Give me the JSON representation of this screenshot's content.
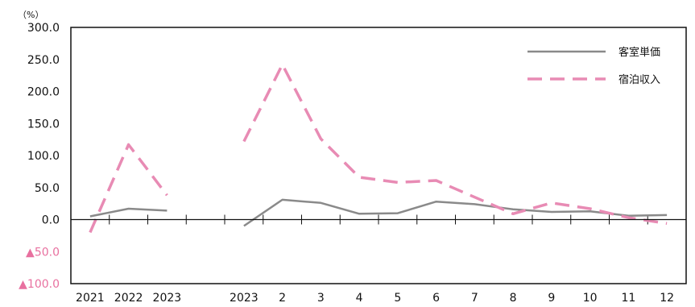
{
  "chart_data": {
    "type": "line",
    "unit_label": "（%）",
    "categories": [
      "2021",
      "2022",
      "2023",
      "",
      "2023",
      "2",
      "3",
      "4",
      "5",
      "6",
      "7",
      "8",
      "9",
      "10",
      "11",
      "12"
    ],
    "y_ticks": [
      {
        "value": 300,
        "label": "300.0"
      },
      {
        "value": 250,
        "label": "250.0"
      },
      {
        "value": 200,
        "label": "200.0"
      },
      {
        "value": 150,
        "label": "150.0"
      },
      {
        "value": 100,
        "label": "100.0"
      },
      {
        "value": 50,
        "label": "50.0"
      },
      {
        "value": 0,
        "label": "0.0"
      },
      {
        "value": -50,
        "label": "▲50.0"
      },
      {
        "value": -100,
        "label": "▲100.0"
      }
    ],
    "ylim": [
      -100,
      300
    ],
    "grid": false,
    "legend_position": "top-right",
    "colors": {
      "room_rate": "#8a8a8a",
      "lodging_revenue": "#e88bb4",
      "negative_tick": "#e8709f"
    },
    "series": [
      {
        "name": "客室単価",
        "style": "solid",
        "segments": [
          {
            "indices": [
              0,
              1,
              2
            ],
            "values": [
              5,
              17,
              14
            ]
          },
          {
            "indices": [
              4,
              5,
              6,
              7,
              8,
              9,
              10,
              11,
              12,
              13,
              14,
              15
            ],
            "values": [
              -10,
              31,
              26,
              9,
              10,
              28,
              24,
              16,
              12,
              13,
              6,
              7
            ]
          }
        ]
      },
      {
        "name": "宿泊収入",
        "style": "dashed",
        "segments": [
          {
            "indices": [
              0,
              1,
              2
            ],
            "values": [
              -20,
              117,
              38
            ]
          },
          {
            "indices": [
              4,
              5,
              6,
              7,
              8,
              9,
              10,
              11,
              12,
              13,
              14,
              15
            ],
            "values": [
              122,
              242,
              126,
              66,
              58,
              61,
              35,
              9,
              26,
              17,
              3,
              -6
            ]
          }
        ]
      }
    ]
  }
}
